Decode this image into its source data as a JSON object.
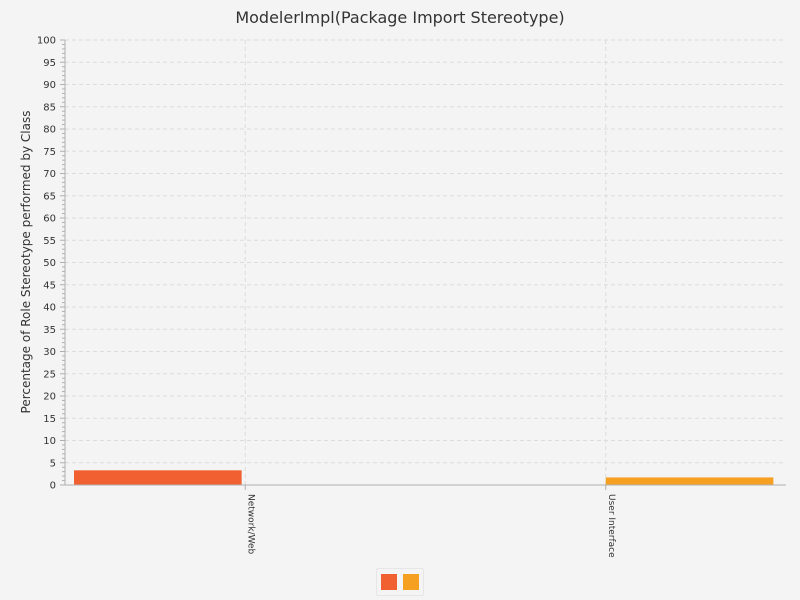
{
  "chart_data": {
    "type": "bar",
    "title": "ModelerImpl(Package Import Stereotype)",
    "xlabel": "",
    "ylabel": "Percentage of Role Stereotype performed by Class",
    "ylim": [
      0,
      100
    ],
    "yticks": [
      0,
      5,
      10,
      15,
      20,
      25,
      30,
      35,
      40,
      45,
      50,
      55,
      60,
      65,
      70,
      75,
      80,
      85,
      90,
      95,
      100
    ],
    "grid": true,
    "categories": [
      "Network/Web",
      "User Interface"
    ],
    "series": [
      {
        "values": [
          3.3,
          0
        ],
        "color": "#f06030"
      },
      {
        "values": [
          0,
          1.7
        ],
        "color": "#f5a020"
      }
    ],
    "legend": {
      "placement": "bottom-center"
    }
  }
}
